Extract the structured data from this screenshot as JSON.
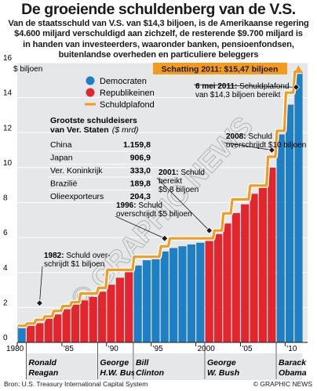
{
  "title": "De groeiende schuldenberg van de V.S.",
  "subtitle_lines": [
    "Van de staatsschuld van V.S. van $14,3 biljoen, is de Amerikaanse regering",
    "$4.600 miljard verschuldigd aan zichzelf, de resterende $9.700 miljard is",
    "in handen van investeerders, waaronder banken, pensioenfondsen,",
    "buitenlandse overheden en particuliere beleggers"
  ],
  "footer": {
    "source": "Bron: U.S. Treasury International Capital System",
    "credit": "© GRAPHIC NEWS"
  },
  "watermark": "© GRAPHIC NEWS",
  "colors": {
    "democrat": "#1f7fc4",
    "republican": "#e3262d",
    "ceiling": "#f39a21",
    "panel": "#e6e7e8"
  },
  "estimate_label": "Schatting 2011: $15,47 biljoen",
  "table": {
    "title": "Grootste schuldeisers",
    "subtitle": "van Ver. Staten",
    "unit": "($ mrd)",
    "rows": [
      {
        "country": "China",
        "value": "1.159,8"
      },
      {
        "country": "Japan",
        "value": "906,9"
      },
      {
        "country": "Ver. Koninkrijk",
        "value": "333,0"
      },
      {
        "country": "Brazilië",
        "value": "189,8"
      },
      {
        "country": "Olieexporteurs",
        "value": "204,3"
      }
    ]
  },
  "presidents": [
    {
      "line1": "Ronald",
      "line2": "Reagan",
      "start": 1981,
      "end": 1989
    },
    {
      "line1": "George",
      "line2": "H.W. Bush",
      "start": 1989,
      "end": 1993
    },
    {
      "line1": "Bill",
      "line2": "Clinton",
      "start": 1993,
      "end": 2001
    },
    {
      "line1": "George",
      "line2": "W. Bush",
      "start": 2001,
      "end": 2009
    },
    {
      "line1": "Barack",
      "line2": "Obama",
      "start": 2009,
      "end": 2012
    }
  ],
  "chart_data": {
    "type": "bar",
    "y_unit_label": "$ biljoen",
    "x_tick_labels": [
      "1980",
      "'85",
      "'90",
      "'95",
      "2000",
      "'05",
      "'10"
    ],
    "x_tick_values": [
      1980,
      1985,
      1990,
      1995,
      2000,
      2005,
      2010
    ],
    "ylim": [
      0,
      16
    ],
    "y_ticks": [
      0,
      2,
      4,
      6,
      8,
      10,
      12,
      14,
      16
    ],
    "legend": [
      "Democraten",
      "Republikeinen",
      "Schuldplafond"
    ],
    "legend_position": "top-left",
    "x": [
      1980,
      1981,
      1982,
      1983,
      1984,
      1985,
      1986,
      1987,
      1988,
      1989,
      1990,
      1991,
      1992,
      1993,
      1994,
      1995,
      1996,
      1997,
      1998,
      1999,
      2000,
      2001,
      2002,
      2003,
      2004,
      2005,
      2006,
      2007,
      2008,
      2009,
      2010,
      2011
    ],
    "debt": [
      0.9,
      1.0,
      1.1,
      1.4,
      1.6,
      1.9,
      2.2,
      2.4,
      2.6,
      2.9,
      3.3,
      3.7,
      4.1,
      4.4,
      4.7,
      4.9,
      5.2,
      5.4,
      5.5,
      5.6,
      5.7,
      5.8,
      6.2,
      6.8,
      7.4,
      7.9,
      8.5,
      9.0,
      10.0,
      11.9,
      13.6,
      15.5
    ],
    "party": [
      "D",
      "R",
      "R",
      "R",
      "R",
      "R",
      "R",
      "R",
      "R",
      "R",
      "R",
      "R",
      "R",
      "D",
      "D",
      "D",
      "D",
      "D",
      "D",
      "D",
      "D",
      "R",
      "R",
      "R",
      "R",
      "R",
      "R",
      "R",
      "R",
      "D",
      "D",
      "D"
    ],
    "ceiling": [
      0.95,
      1.08,
      1.29,
      1.49,
      1.8,
      2.08,
      2.3,
      2.8,
      2.8,
      3.12,
      4.15,
      4.15,
      4.15,
      4.9,
      4.9,
      4.9,
      5.5,
      5.95,
      5.95,
      5.95,
      5.95,
      5.95,
      6.4,
      7.38,
      8.18,
      8.18,
      8.97,
      8.97,
      10.62,
      12.1,
      14.29,
      15.5
    ],
    "annotations": [
      {
        "year": 1982,
        "value": 1.1,
        "lines": [
          "1982: Schuld over-",
          "schrijdt $1 biljoen"
        ]
      },
      {
        "year": 1996,
        "value": 5.2,
        "lines": [
          "1996: Schuld",
          "overschrijdt $5 biljoen"
        ]
      },
      {
        "year": 2001,
        "value": 5.8,
        "lines": [
          "2001: Schuld",
          "bereikt",
          "$5,8 biljoen"
        ]
      },
      {
        "year": 2008,
        "value": 10.0,
        "lines": [
          "2008: Schuld",
          "overschrijdt $10 biljoen"
        ]
      },
      {
        "year": 2011,
        "value": 14.3,
        "lines": [
          "6 mei 2011: Schuldplafond",
          "van $14,3 biljoen bereikt"
        ]
      }
    ]
  }
}
